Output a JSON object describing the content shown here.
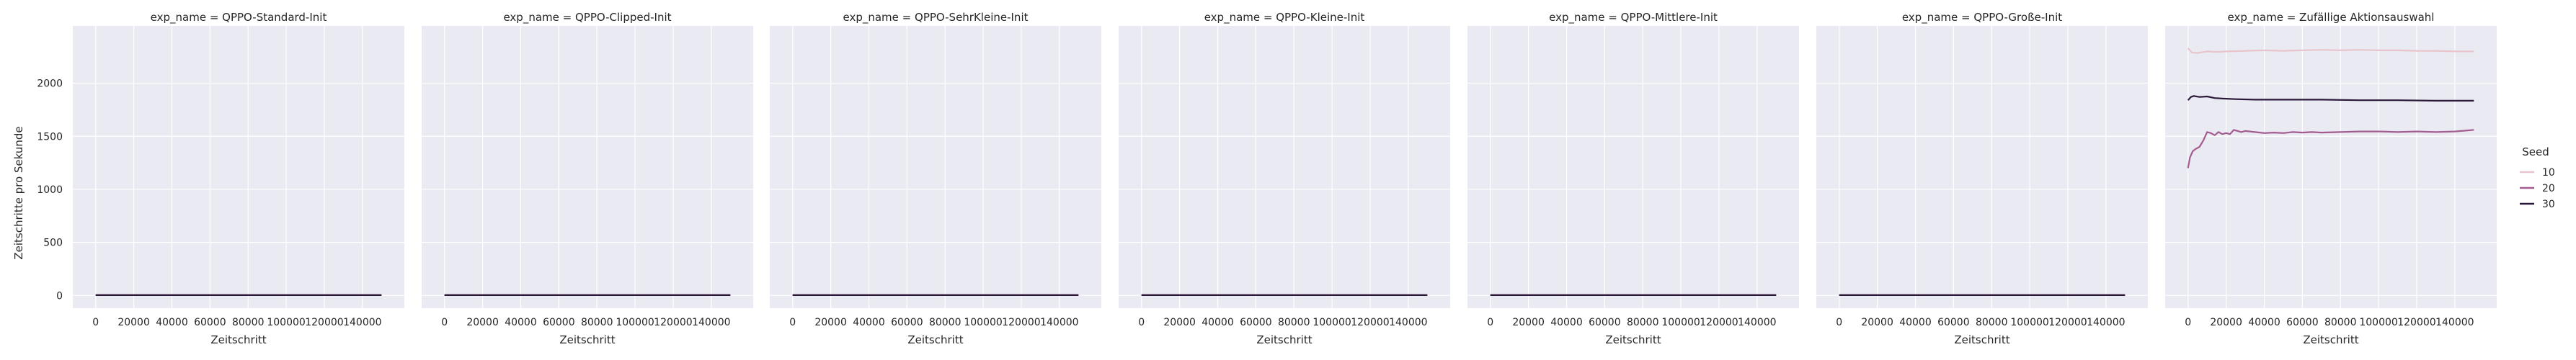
{
  "chart_data": {
    "type": "line",
    "ylabel": "Zeitschritte pro Sekunde",
    "xlabel": "Zeitschritt",
    "x_ticks": [
      0,
      20000,
      40000,
      60000,
      80000,
      100000,
      120000,
      140000
    ],
    "y_ticks": [
      0,
      500,
      1000,
      1500,
      2000
    ],
    "xlim": [
      -12000,
      162000
    ],
    "ylim": [
      -120,
      2540
    ],
    "grid": true,
    "legend": {
      "title": "Seed",
      "placement": "right",
      "entries": [
        {
          "label": "10",
          "color": "#e8c5cc"
        },
        {
          "label": "20",
          "color": "#a45b8f"
        },
        {
          "label": "30",
          "color": "#2a1838"
        }
      ]
    },
    "panels": [
      {
        "title": "exp_name = QPPO-Standard-Init",
        "series": [
          {
            "seed": "10",
            "color": "#e8c5cc",
            "points": [
              [
                0,
                3
              ],
              [
                150000,
                3
              ]
            ]
          },
          {
            "seed": "20",
            "color": "#a45b8f",
            "points": [
              [
                0,
                3
              ],
              [
                150000,
                3
              ]
            ]
          },
          {
            "seed": "30",
            "color": "#2a1838",
            "points": [
              [
                0,
                3
              ],
              [
                150000,
                3
              ]
            ]
          }
        ]
      },
      {
        "title": "exp_name = QPPO-Clipped-Init",
        "series": [
          {
            "seed": "10",
            "color": "#e8c5cc",
            "points": [
              [
                0,
                3
              ],
              [
                150000,
                3
              ]
            ]
          },
          {
            "seed": "20",
            "color": "#a45b8f",
            "points": [
              [
                0,
                3
              ],
              [
                150000,
                3
              ]
            ]
          },
          {
            "seed": "30",
            "color": "#2a1838",
            "points": [
              [
                0,
                3
              ],
              [
                150000,
                3
              ]
            ]
          }
        ]
      },
      {
        "title": "exp_name = QPPO-SehrKleine-Init",
        "series": [
          {
            "seed": "10",
            "color": "#e8c5cc",
            "points": [
              [
                0,
                3
              ],
              [
                150000,
                3
              ]
            ]
          },
          {
            "seed": "20",
            "color": "#a45b8f",
            "points": [
              [
                0,
                3
              ],
              [
                150000,
                3
              ]
            ]
          },
          {
            "seed": "30",
            "color": "#2a1838",
            "points": [
              [
                0,
                3
              ],
              [
                150000,
                3
              ]
            ]
          }
        ]
      },
      {
        "title": "exp_name = QPPO-Kleine-Init",
        "series": [
          {
            "seed": "10",
            "color": "#e8c5cc",
            "points": [
              [
                0,
                3
              ],
              [
                150000,
                3
              ]
            ]
          },
          {
            "seed": "20",
            "color": "#a45b8f",
            "points": [
              [
                0,
                3
              ],
              [
                150000,
                3
              ]
            ]
          },
          {
            "seed": "30",
            "color": "#2a1838",
            "points": [
              [
                0,
                3
              ],
              [
                150000,
                3
              ]
            ]
          }
        ]
      },
      {
        "title": "exp_name = QPPO-Mittlere-Init",
        "series": [
          {
            "seed": "10",
            "color": "#e8c5cc",
            "points": [
              [
                0,
                3
              ],
              [
                150000,
                3
              ]
            ]
          },
          {
            "seed": "20",
            "color": "#a45b8f",
            "points": [
              [
                0,
                3
              ],
              [
                150000,
                3
              ]
            ]
          },
          {
            "seed": "30",
            "color": "#2a1838",
            "points": [
              [
                0,
                3
              ],
              [
                150000,
                3
              ]
            ]
          }
        ]
      },
      {
        "title": "exp_name = QPPO-Große-Init",
        "series": [
          {
            "seed": "10",
            "color": "#e8c5cc",
            "points": [
              [
                0,
                3
              ],
              [
                150000,
                3
              ]
            ]
          },
          {
            "seed": "20",
            "color": "#a45b8f",
            "points": [
              [
                0,
                3
              ],
              [
                150000,
                3
              ]
            ]
          },
          {
            "seed": "30",
            "color": "#2a1838",
            "points": [
              [
                0,
                3
              ],
              [
                150000,
                3
              ]
            ]
          }
        ]
      },
      {
        "title": "exp_name = Zufällige Aktionsauswahl",
        "series": [
          {
            "seed": "10",
            "color": "#e8c5cc",
            "points": [
              [
                0,
                2330
              ],
              [
                2000,
                2290
              ],
              [
                5000,
                2285
              ],
              [
                10000,
                2300
              ],
              [
                15000,
                2295
              ],
              [
                20000,
                2300
              ],
              [
                30000,
                2305
              ],
              [
                40000,
                2310
              ],
              [
                50000,
                2305
              ],
              [
                60000,
                2310
              ],
              [
                70000,
                2315
              ],
              [
                80000,
                2310
              ],
              [
                90000,
                2315
              ],
              [
                100000,
                2310
              ],
              [
                110000,
                2310
              ],
              [
                120000,
                2305
              ],
              [
                130000,
                2305
              ],
              [
                140000,
                2300
              ],
              [
                150000,
                2300
              ]
            ]
          },
          {
            "seed": "20",
            "color": "#a45b8f",
            "points": [
              [
                0,
                1200
              ],
              [
                1000,
                1300
              ],
              [
                2500,
                1360
              ],
              [
                4000,
                1380
              ],
              [
                6000,
                1400
              ],
              [
                8000,
                1460
              ],
              [
                10000,
                1540
              ],
              [
                12000,
                1530
              ],
              [
                14000,
                1510
              ],
              [
                16000,
                1540
              ],
              [
                18000,
                1520
              ],
              [
                20000,
                1530
              ],
              [
                22000,
                1520
              ],
              [
                24000,
                1560
              ],
              [
                26000,
                1550
              ],
              [
                28000,
                1540
              ],
              [
                30000,
                1550
              ],
              [
                35000,
                1540
              ],
              [
                40000,
                1530
              ],
              [
                45000,
                1535
              ],
              [
                50000,
                1530
              ],
              [
                55000,
                1540
              ],
              [
                60000,
                1535
              ],
              [
                65000,
                1540
              ],
              [
                70000,
                1535
              ],
              [
                80000,
                1540
              ],
              [
                90000,
                1545
              ],
              [
                100000,
                1545
              ],
              [
                110000,
                1540
              ],
              [
                120000,
                1545
              ],
              [
                130000,
                1540
              ],
              [
                140000,
                1545
              ],
              [
                150000,
                1560
              ]
            ]
          },
          {
            "seed": "30",
            "color": "#2a1838",
            "points": [
              [
                0,
                1840
              ],
              [
                1500,
                1870
              ],
              [
                3000,
                1880
              ],
              [
                6000,
                1870
              ],
              [
                10000,
                1875
              ],
              [
                14000,
                1860
              ],
              [
                18000,
                1855
              ],
              [
                25000,
                1850
              ],
              [
                35000,
                1845
              ],
              [
                50000,
                1845
              ],
              [
                70000,
                1845
              ],
              [
                90000,
                1840
              ],
              [
                110000,
                1840
              ],
              [
                130000,
                1835
              ],
              [
                150000,
                1835
              ]
            ]
          }
        ]
      }
    ]
  }
}
